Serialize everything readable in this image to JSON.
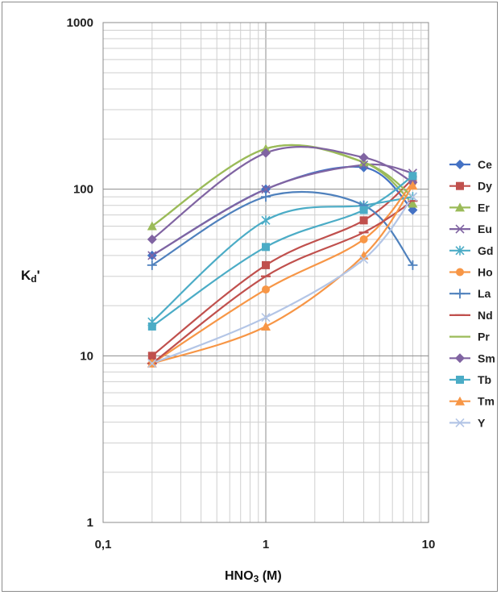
{
  "chart_data": {
    "type": "line",
    "xscale": "log",
    "yscale": "log",
    "xlim": [
      0.1,
      10
    ],
    "ylim": [
      1,
      1000
    ],
    "xticks": [
      "0,1",
      "1",
      "10"
    ],
    "yticks": [
      "1",
      "10",
      "100",
      "1000"
    ],
    "xlabel_main": "HNO",
    "xlabel_sub": "3",
    "xlabel_tail": " (M)",
    "ylabel_main": "K",
    "ylabel_sub": "d",
    "ylabel_tail": "'",
    "grid": true,
    "legend_position": "right",
    "x": [
      0.2,
      1,
      4,
      8
    ],
    "series": [
      {
        "name": "Ce",
        "values": [
          40,
          100,
          135,
          75
        ],
        "color": "#4472c4",
        "marker": "diamond"
      },
      {
        "name": "Dy",
        "values": [
          10,
          35,
          65,
          115
        ],
        "color": "#c0504d",
        "marker": "square"
      },
      {
        "name": "Er",
        "values": [
          60,
          175,
          145,
          82
        ],
        "color": "#9bbb59",
        "marker": "triangle"
      },
      {
        "name": "Eu",
        "values": [
          40,
          100,
          140,
          125
        ],
        "color": "#8064a2",
        "marker": "x"
      },
      {
        "name": "Gd",
        "values": [
          16,
          65,
          80,
          90
        ],
        "color": "#4bacc6",
        "marker": "star"
      },
      {
        "name": "Ho",
        "values": [
          9,
          25,
          50,
          110
        ],
        "color": "#f79646",
        "marker": "circle"
      },
      {
        "name": "La",
        "values": [
          35,
          90,
          80,
          35
        ],
        "color": "#4f81bd",
        "marker": "plus"
      },
      {
        "name": "Nd",
        "values": [
          9,
          30,
          55,
          85
        ],
        "color": "#c0504d",
        "marker": "dash"
      },
      {
        "name": "Pr",
        "values": [
          60,
          175,
          145,
          90
        ],
        "color": "#9bbb59",
        "marker": "none"
      },
      {
        "name": "Sm",
        "values": [
          50,
          165,
          155,
          110
        ],
        "color": "#8064a2",
        "marker": "diamond"
      },
      {
        "name": "Tb",
        "values": [
          15,
          45,
          75,
          120
        ],
        "color": "#4bacc6",
        "marker": "square"
      },
      {
        "name": "Tm",
        "values": [
          9,
          15,
          40,
          105
        ],
        "color": "#f79646",
        "marker": "triangle"
      },
      {
        "name": "Y",
        "values": [
          9,
          17,
          38,
          90
        ],
        "color": "#b3c5e6",
        "marker": "x"
      }
    ]
  }
}
